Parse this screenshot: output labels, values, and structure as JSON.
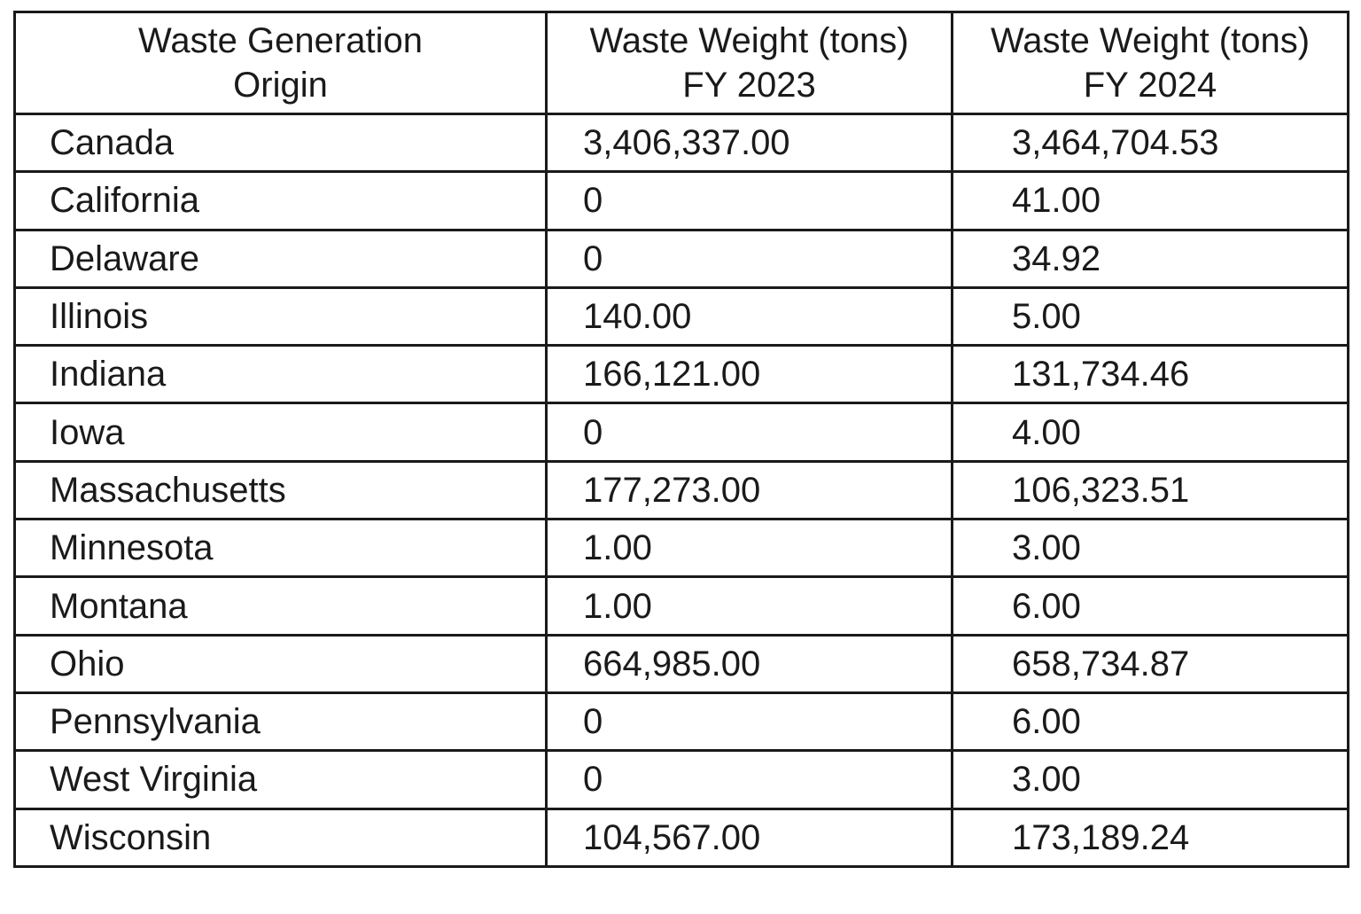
{
  "table": {
    "header": [
      [
        "Waste Generation",
        "Origin"
      ],
      [
        "Waste Weight (tons)",
        "FY 2023"
      ],
      [
        "Waste Weight (tons)",
        "FY 2024"
      ]
    ],
    "rows": [
      [
        "Canada",
        "3,406,337.00",
        "3,464,704.53"
      ],
      [
        "California",
        "0",
        "41.00"
      ],
      [
        "Delaware",
        "0",
        "34.92"
      ],
      [
        "Illinois",
        "140.00",
        "5.00"
      ],
      [
        "Indiana",
        "166,121.00",
        "131,734.46"
      ],
      [
        "Iowa",
        "0",
        "4.00"
      ],
      [
        "Massachusetts",
        "177,273.00",
        "106,323.51"
      ],
      [
        "Minnesota",
        "1.00",
        "3.00"
      ],
      [
        "Montana",
        "1.00",
        "6.00"
      ],
      [
        "Ohio",
        "664,985.00",
        "658,734.87"
      ],
      [
        "Pennsylvania",
        "0",
        "6.00"
      ],
      [
        "West Virginia",
        "0",
        "3.00"
      ],
      [
        "Wisconsin",
        "104,567.00",
        "173,189.24"
      ]
    ]
  }
}
